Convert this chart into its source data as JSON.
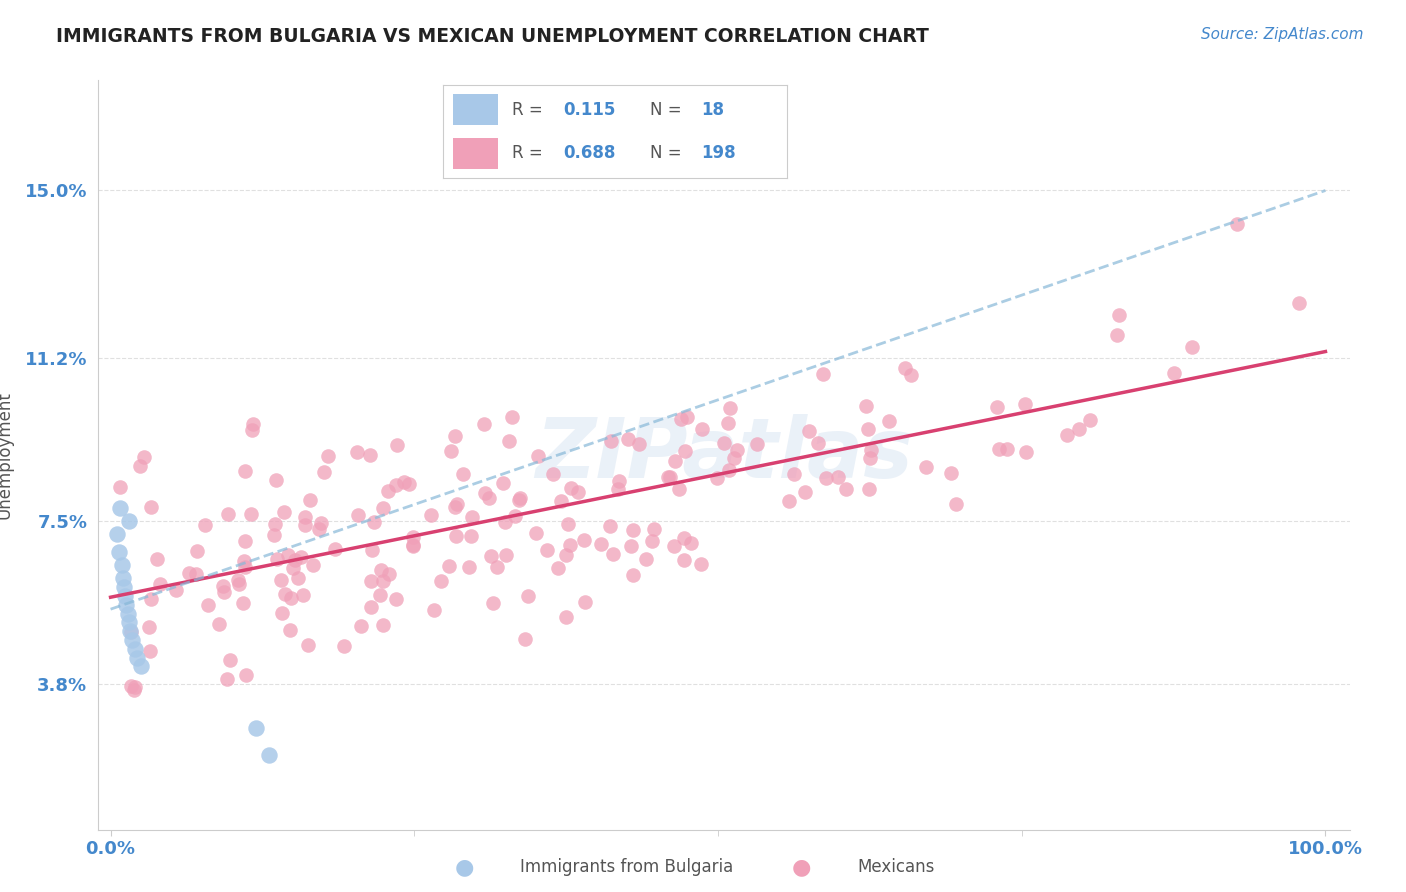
{
  "title": "IMMIGRANTS FROM BULGARIA VS MEXICAN UNEMPLOYMENT CORRELATION CHART",
  "source": "Source: ZipAtlas.com",
  "ylabel": "Unemployment",
  "xlim": [
    -0.01,
    1.02
  ],
  "ylim": [
    0.005,
    0.175
  ],
  "yticks": [
    0.038,
    0.075,
    0.112,
    0.15
  ],
  "ytick_labels": [
    "3.8%",
    "7.5%",
    "11.2%",
    "15.0%"
  ],
  "xtick_labels": [
    "0.0%",
    "100.0%"
  ],
  "xticks": [
    0.0,
    1.0
  ],
  "legend_r_bulgaria": "0.115",
  "legend_n_bulgaria": "18",
  "legend_r_mexicans": "0.688",
  "legend_n_mexicans": "198",
  "bulgaria_color": "#a8c8e8",
  "mexican_color": "#f0a0b8",
  "bulgaria_line_color": "#88b8d8",
  "mexican_line_color": "#d84070",
  "watermark": "ZIPatlas",
  "background_color": "#ffffff",
  "title_color": "#222222",
  "axis_label_color": "#4488cc",
  "grid_color": "#e0e0e0",
  "bottom_label_bulgaria": "Immigrants from Bulgaria",
  "bottom_label_mexicans": "Mexicans"
}
